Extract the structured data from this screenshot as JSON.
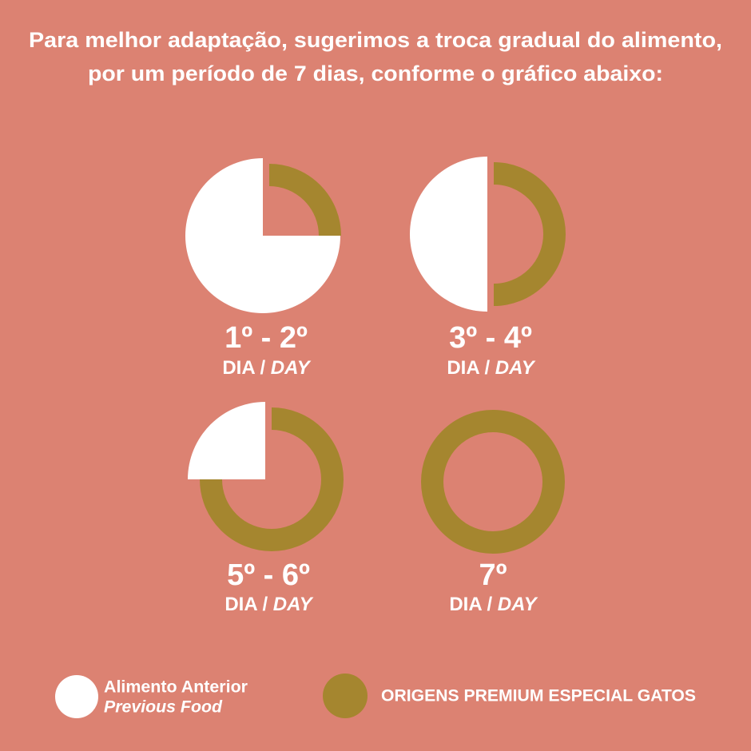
{
  "title": [
    "Para melhor adaptação, sugerimos a troca gradual do alimento,",
    "por um período de 7 dias, conforme o gráfico abaixo:"
  ],
  "legend": [
    {
      "name": "Alimento Anterior",
      "name_en": "Previous Food",
      "color": "#ffffff"
    },
    {
      "name": "ORIGENS PREMIUM ESPECIAL GATOS",
      "color": "#a5862f"
    }
  ],
  "chart_data": [
    {
      "type": "pie",
      "label": "1º - 2º",
      "unit": "DIA /",
      "unit_en": "DAY",
      "values": [
        75,
        25
      ]
    },
    {
      "type": "pie",
      "label": "3º - 4º",
      "unit": "DIA /",
      "unit_en": "DAY",
      "values": [
        50,
        50
      ]
    },
    {
      "type": "pie",
      "label": "5º - 6º",
      "unit": "DIA /",
      "unit_en": "DAY",
      "values": [
        25,
        75
      ]
    },
    {
      "type": "pie",
      "label": "7º",
      "unit": "DIA /",
      "unit_en": "DAY",
      "values": [
        0,
        100
      ]
    }
  ]
}
